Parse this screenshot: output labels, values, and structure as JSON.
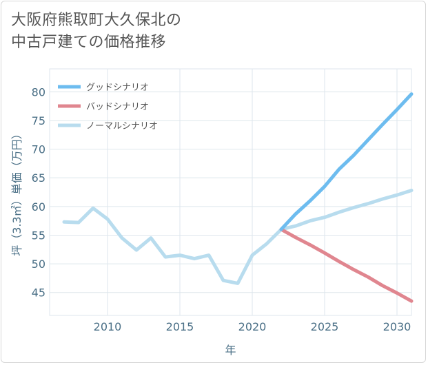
{
  "chart_data": {
    "type": "line",
    "title": [
      "大阪府熊取町大久保北の",
      "中古戸建ての価格推移"
    ],
    "xlabel": "年",
    "ylabel": "坪（3.3㎡）単価（万円）",
    "xlim": [
      2006,
      2031
    ],
    "ylim": [
      41,
      84
    ],
    "xticks": [
      2010,
      2015,
      2020,
      2025,
      2030
    ],
    "yticks": [
      45,
      50,
      55,
      60,
      65,
      70,
      75,
      80
    ],
    "legend_position": "top-left",
    "series": [
      {
        "name": "グッドシナリオ",
        "color": "#6dbcef",
        "x": [
          2022,
          2023,
          2024,
          2025,
          2026,
          2027,
          2028,
          2029,
          2030,
          2031
        ],
        "y": [
          56.0,
          58.7,
          61.0,
          63.5,
          66.5,
          68.9,
          71.6,
          74.3,
          76.9,
          79.6
        ]
      },
      {
        "name": "バッドシナリオ",
        "color": "#e0868f",
        "x": [
          2022,
          2023,
          2024,
          2025,
          2026,
          2027,
          2028,
          2029,
          2030,
          2031
        ],
        "y": [
          56.0,
          54.6,
          53.3,
          51.9,
          50.4,
          49.0,
          47.7,
          46.2,
          44.9,
          43.5
        ]
      },
      {
        "name": "ノーマルシナリオ",
        "color": "#b8dcee",
        "x": [
          2007,
          2008,
          2009,
          2010,
          2011,
          2012,
          2013,
          2014,
          2015,
          2016,
          2017,
          2018,
          2019,
          2020,
          2021,
          2022,
          2023,
          2024,
          2025,
          2026,
          2027,
          2028,
          2029,
          2030,
          2031
        ],
        "y": [
          57.3,
          57.2,
          59.7,
          57.8,
          54.5,
          52.4,
          54.5,
          51.2,
          51.5,
          50.9,
          51.5,
          47.1,
          46.6,
          51.5,
          53.5,
          56.0,
          56.6,
          57.5,
          58.1,
          59.0,
          59.8,
          60.5,
          61.3,
          62.0,
          62.8
        ]
      }
    ]
  }
}
